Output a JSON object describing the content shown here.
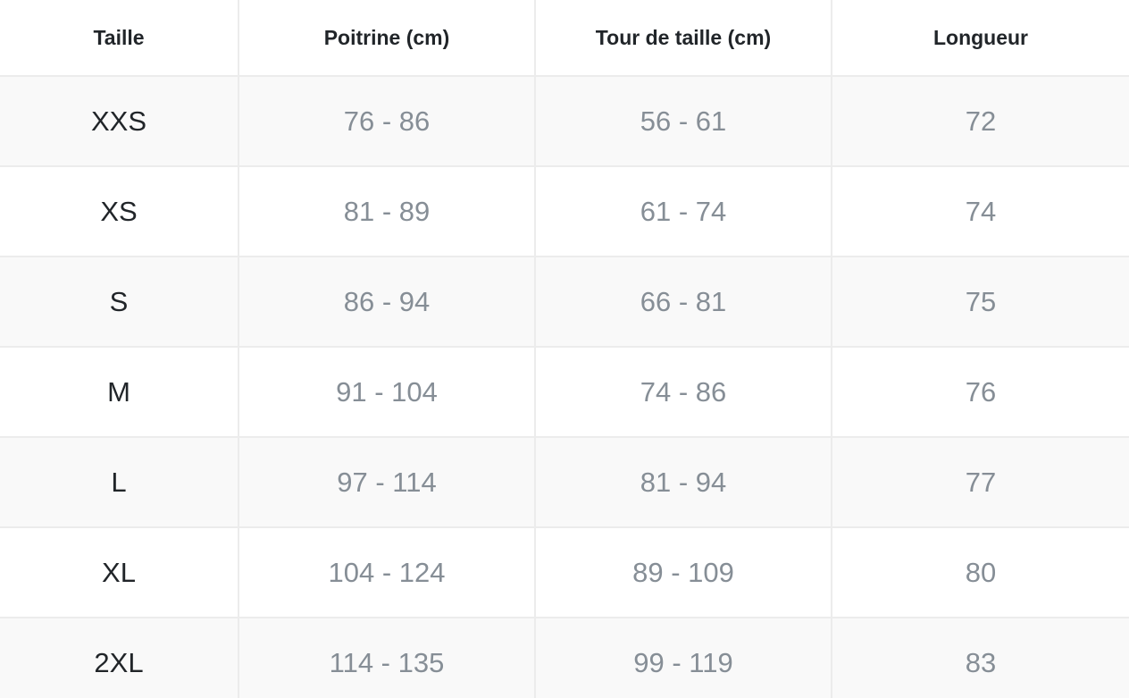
{
  "table": {
    "headers": [
      "Taille",
      "Poitrine (cm)",
      "Tour de taille (cm)",
      "Longueur"
    ],
    "rows": [
      [
        "XXS",
        "76 - 86",
        "56 - 61",
        "72"
      ],
      [
        "XS",
        "81 - 89",
        "61 - 74",
        "74"
      ],
      [
        "S",
        "86 - 94",
        "66 - 81",
        "75"
      ],
      [
        "M",
        "91 - 104",
        "74 - 86",
        "76"
      ],
      [
        "L",
        "97 - 114",
        "81 - 94",
        "77"
      ],
      [
        "XL",
        "104 - 124",
        "89 - 109",
        "80"
      ],
      [
        "2XL",
        "114 - 135",
        "99 - 119",
        "83"
      ]
    ]
  }
}
